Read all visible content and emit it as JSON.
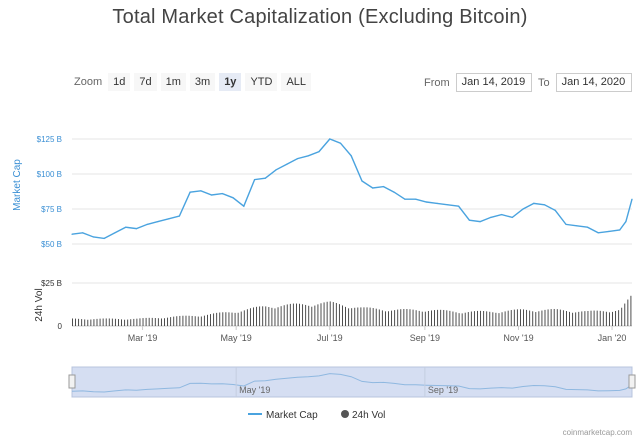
{
  "title": "Total Market Capitalization (Excluding Bitcoin)",
  "zoom": {
    "label": "Zoom",
    "buttons": [
      "1d",
      "7d",
      "1m",
      "3m",
      "1y",
      "YTD",
      "ALL"
    ],
    "active": "1y"
  },
  "range": {
    "from_label": "From",
    "from_value": "Jan 14, 2019",
    "to_label": "To",
    "to_value": "Jan 14, 2020"
  },
  "legend": {
    "market_cap": "Market Cap",
    "vol": "24h Vol"
  },
  "credit": "coinmarketcap.com",
  "colors": {
    "line": "#4aa3df",
    "bar": "#3b3b3b",
    "navigator_fill": "#d5def2",
    "axis_text": "#3a8fd4"
  },
  "chart_data": {
    "type": "line",
    "x_start": "2019-01-14",
    "x_end": "2020-01-14",
    "xtick_labels": [
      "Mar '19",
      "May '19",
      "Jul '19",
      "Sep '19",
      "Nov '19",
      "Jan '20"
    ],
    "xtick_dates": [
      "2019-03-01",
      "2019-05-01",
      "2019-07-01",
      "2019-09-01",
      "2019-11-01",
      "2020-01-01"
    ],
    "navigator_labels": [
      "May '19",
      "Sep '19"
    ],
    "navigator_dates": [
      "2019-05-01",
      "2019-09-01"
    ],
    "ylabel": "Market Cap",
    "ylim": [
      50,
      135
    ],
    "ytick_labels": [
      "$50 B",
      "$75 B",
      "$100 B",
      "$125 B"
    ],
    "ytick_values": [
      50,
      75,
      100,
      125
    ],
    "vol_ylabel": "24h Vol",
    "vol_ylim": [
      0,
      25
    ],
    "vol_ytick_labels": [
      "0",
      "$25 B"
    ],
    "vol_ytick_values": [
      0,
      25
    ],
    "series": [
      {
        "name": "Market Cap",
        "x": [
          "2019-01-14",
          "2019-01-21",
          "2019-01-28",
          "2019-02-04",
          "2019-02-11",
          "2019-02-18",
          "2019-02-25",
          "2019-03-04",
          "2019-03-11",
          "2019-03-18",
          "2019-03-25",
          "2019-04-01",
          "2019-04-08",
          "2019-04-15",
          "2019-04-22",
          "2019-04-29",
          "2019-05-06",
          "2019-05-13",
          "2019-05-20",
          "2019-05-27",
          "2019-06-03",
          "2019-06-10",
          "2019-06-17",
          "2019-06-24",
          "2019-07-01",
          "2019-07-08",
          "2019-07-15",
          "2019-07-22",
          "2019-07-29",
          "2019-08-05",
          "2019-08-12",
          "2019-08-19",
          "2019-08-26",
          "2019-09-02",
          "2019-09-09",
          "2019-09-16",
          "2019-09-23",
          "2019-09-30",
          "2019-10-07",
          "2019-10-14",
          "2019-10-21",
          "2019-10-28",
          "2019-11-04",
          "2019-11-11",
          "2019-11-18",
          "2019-11-25",
          "2019-12-02",
          "2019-12-09",
          "2019-12-16",
          "2019-12-23",
          "2019-12-30",
          "2020-01-06",
          "2020-01-10",
          "2020-01-14"
        ],
        "values": [
          57,
          58,
          55,
          54,
          58,
          62,
          61,
          64,
          66,
          68,
          70,
          87,
          88,
          85,
          86,
          83,
          77,
          96,
          97,
          103,
          107,
          111,
          113,
          116,
          125,
          122,
          113,
          95,
          90,
          91,
          87,
          82,
          82,
          80,
          79,
          78,
          77,
          67,
          66,
          69,
          71,
          69,
          75,
          79,
          78,
          74,
          64,
          63,
          62,
          58,
          59,
          60,
          66,
          82
        ]
      },
      {
        "name": "24h Vol",
        "x": [
          "2019-01-14",
          "2019-02-04",
          "2019-02-25",
          "2019-03-18",
          "2019-04-08",
          "2019-04-29",
          "2019-05-20",
          "2019-06-10",
          "2019-07-01",
          "2019-07-22",
          "2019-08-12",
          "2019-09-02",
          "2019-09-23",
          "2019-10-14",
          "2019-11-04",
          "2019-11-25",
          "2019-12-16",
          "2020-01-06",
          "2020-01-14"
        ],
        "values": [
          4,
          4,
          4,
          5,
          6,
          8,
          11,
          12,
          13,
          10,
          9,
          9,
          8,
          8,
          9,
          9,
          8,
          9,
          17
        ]
      }
    ]
  }
}
